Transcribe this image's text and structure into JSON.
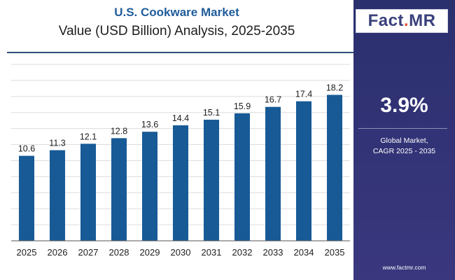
{
  "header": {
    "title": "U.S. Cookware Market",
    "subtitle": "Value (USD Billion) Analysis, 2025-2035"
  },
  "sidebar": {
    "logo_prefix": "Fact",
    "logo_dot": ".",
    "logo_suffix": "MR",
    "cagr_value": "3.9%",
    "cagr_label_line1": "Global Market,",
    "cagr_label_line2": "CAGR 2025 - 2035",
    "website": "www.factmr.com"
  },
  "colors": {
    "bar": "#175a96",
    "panel": "#2e3272",
    "title": "#1f5c9a",
    "logo_accent": "#e9503e"
  },
  "chart_data": {
    "type": "bar",
    "title": "U.S. Cookware Market",
    "subtitle": "Value (USD Billion) Analysis, 2025-2035",
    "categories": [
      "2025",
      "2026",
      "2027",
      "2028",
      "2029",
      "2030",
      "2031",
      "2032",
      "2033",
      "2034",
      "2035"
    ],
    "values": [
      10.6,
      11.3,
      12.1,
      12.8,
      13.6,
      14.4,
      15.1,
      15.9,
      16.7,
      17.4,
      18.2
    ],
    "data_labels": [
      "10.6",
      "11.3",
      "12.1",
      "12.8",
      "13.6",
      "14.4",
      "15.1",
      "15.9",
      "16.7",
      "17.4",
      "18.2"
    ],
    "xlabel": "",
    "ylabel": "",
    "ylim": [
      0,
      22
    ],
    "grid": true,
    "legend": "none"
  }
}
